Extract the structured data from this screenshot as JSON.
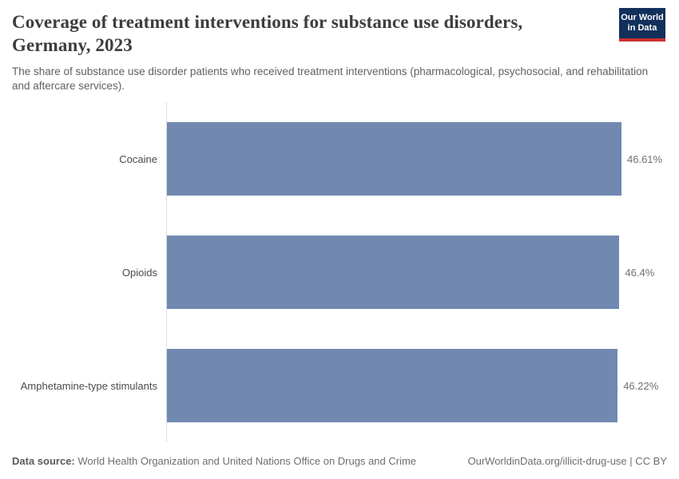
{
  "header": {
    "title": "Coverage of treatment interventions for substance use disorders, Germany, 2023",
    "subtitle": "The share of substance use disorder patients who received treatment interventions (pharmacological, psychosocial, and rehabilitation and aftercare services).",
    "logo": {
      "line1": "Our World",
      "line2": "in Data"
    }
  },
  "chart_data": {
    "type": "bar",
    "orientation": "horizontal",
    "title": "Coverage of treatment interventions for substance use disorders, Germany, 2023",
    "categories": [
      "Cocaine",
      "Opioids",
      "Amphetamine-type stimulants"
    ],
    "values": [
      46.61,
      46.4,
      46.22
    ],
    "value_labels": [
      "46.61%",
      "46.4%",
      "46.22%"
    ],
    "unit": "%",
    "bar_color": "#7189b1",
    "axis_line_color": "#dcdcdc",
    "grid": false,
    "legend": false
  },
  "footer": {
    "datasource_label": "Data source:",
    "datasource_text": " World Health Organization and United Nations Office on Drugs and Crime",
    "link": "OurWorldinData.org/illicit-drug-use | CC BY"
  }
}
